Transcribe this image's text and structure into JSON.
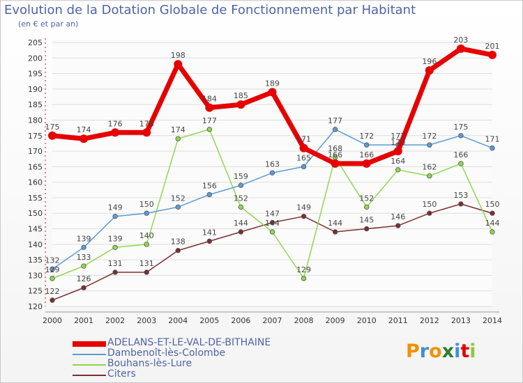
{
  "chart_data": {
    "type": "line",
    "title": "Evolution de la Dotation Globale de Fonctionnement par Habitant",
    "subtitle": "(en € et par an)",
    "xlabel": "",
    "ylabel": "",
    "x": [
      "2000",
      "2001",
      "2002",
      "2003",
      "2004",
      "2005",
      "2006",
      "2007",
      "2008",
      "2009",
      "2010",
      "2011",
      "2012",
      "2013",
      "2014"
    ],
    "ylim": [
      120,
      205
    ],
    "yticks": [
      120,
      125,
      130,
      135,
      140,
      145,
      150,
      155,
      160,
      165,
      170,
      175,
      180,
      185,
      190,
      195,
      200,
      205
    ],
    "grid": "horizontal",
    "legend_position": "bottom-left",
    "series": [
      {
        "name": "ADELANS-ET-LE-VAL-DE-BITHAINE",
        "color": "#e60000",
        "values": [
          175,
          174,
          176,
          176,
          198,
          184,
          185,
          189,
          171,
          166,
          166,
          170,
          196,
          203,
          201
        ]
      },
      {
        "name": "Dambenoît-lès-Colombe",
        "color": "#5b9bd5",
        "values": [
          132,
          139,
          149,
          150,
          152,
          156,
          159,
          163,
          165,
          177,
          172,
          172,
          172,
          175,
          171
        ]
      },
      {
        "name": "Bouhans-lès-Lure",
        "color": "#8dd84e",
        "values": [
          129,
          133,
          139,
          140,
          174,
          177,
          152,
          144,
          129,
          168,
          152,
          164,
          162,
          166,
          144
        ]
      },
      {
        "name": "Citers",
        "color": "#7a2e2e",
        "values": [
          122,
          126,
          131,
          131,
          138,
          141,
          144,
          147,
          149,
          144,
          145,
          146,
          150,
          153,
          150
        ]
      }
    ]
  },
  "logo": {
    "letters": [
      "P",
      "r",
      "o",
      "x",
      "i",
      "t",
      "i"
    ],
    "colors": [
      "#f39200",
      "#3f8fd8",
      "#f39200",
      "#2e7d32",
      "#3f8fd8",
      "#e60000",
      "#8dc63f"
    ]
  }
}
